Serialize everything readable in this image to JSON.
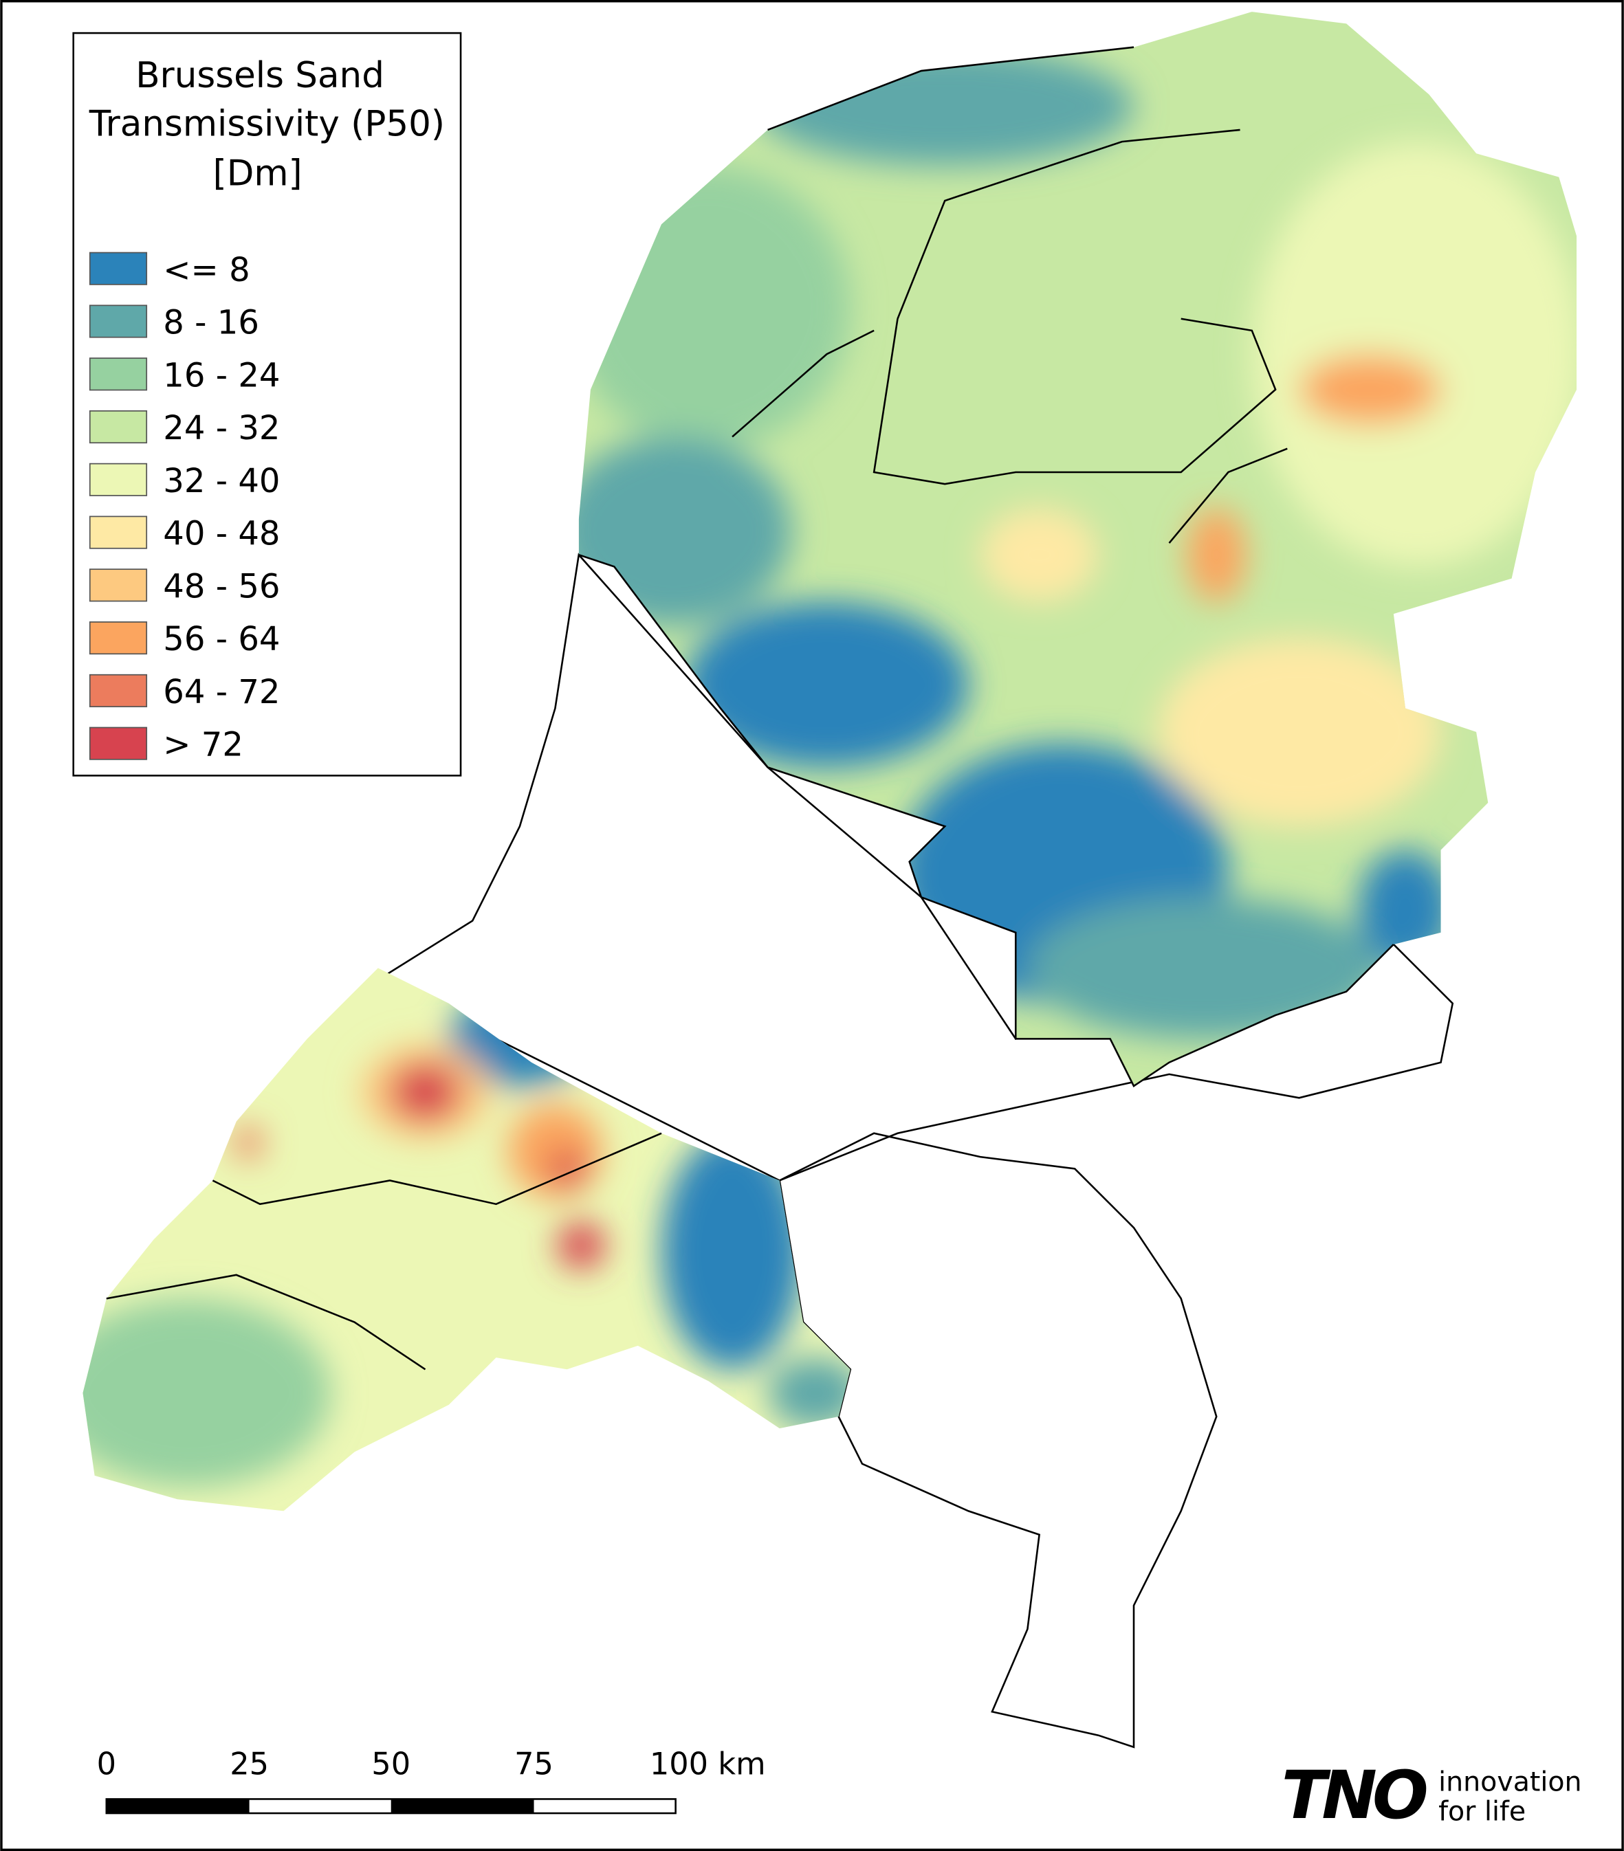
{
  "legend": {
    "title": [
      "Brussels Sand",
      "Transmissivity (P50)",
      "[Dm]"
    ],
    "items": [
      {
        "label": "<= 8",
        "color": "#2b83ba"
      },
      {
        "label": "8 - 16",
        "color": "#5fa8a9"
      },
      {
        "label": "16 - 24",
        "color": "#96d1a0"
      },
      {
        "label": "24 - 32",
        "color": "#c7e8a3"
      },
      {
        "label": "32 - 40",
        "color": "#ecf7b5"
      },
      {
        "label": "40 - 48",
        "color": "#fee9a4"
      },
      {
        "label": "48 - 56",
        "color": "#fdc980"
      },
      {
        "label": "56 - 64",
        "color": "#fba55f"
      },
      {
        "label": "64 - 72",
        "color": "#ec7c5d"
      },
      {
        "label": "> 72",
        "color": "#d7434f"
      }
    ]
  },
  "scale_bar": {
    "labels": [
      "0",
      "25",
      "50",
      "75",
      "100 km"
    ]
  },
  "logo": {
    "name": "TNO",
    "tagline": [
      "innovation",
      "for life"
    ]
  }
}
